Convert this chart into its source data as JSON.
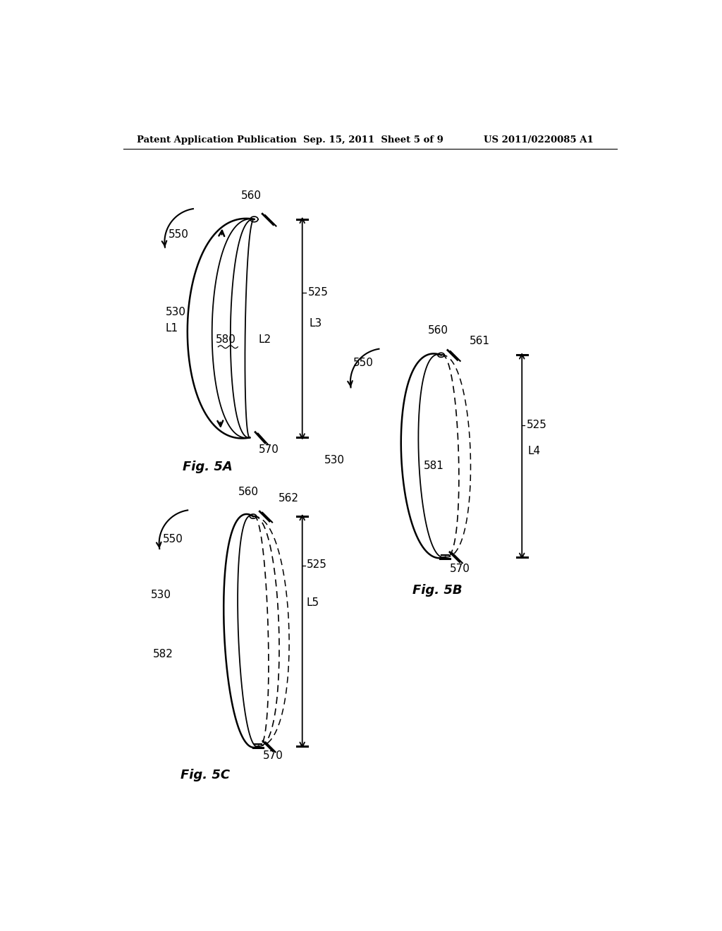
{
  "bg_color": "#ffffff",
  "text_color": "#000000",
  "header_left": "Patent Application Publication",
  "header_center": "Sep. 15, 2011  Sheet 5 of 9",
  "header_right": "US 2011/0220085 A1",
  "fig5a_label": "Fig. 5A",
  "fig5b_label": "Fig. 5B",
  "fig5c_label": "Fig. 5C"
}
